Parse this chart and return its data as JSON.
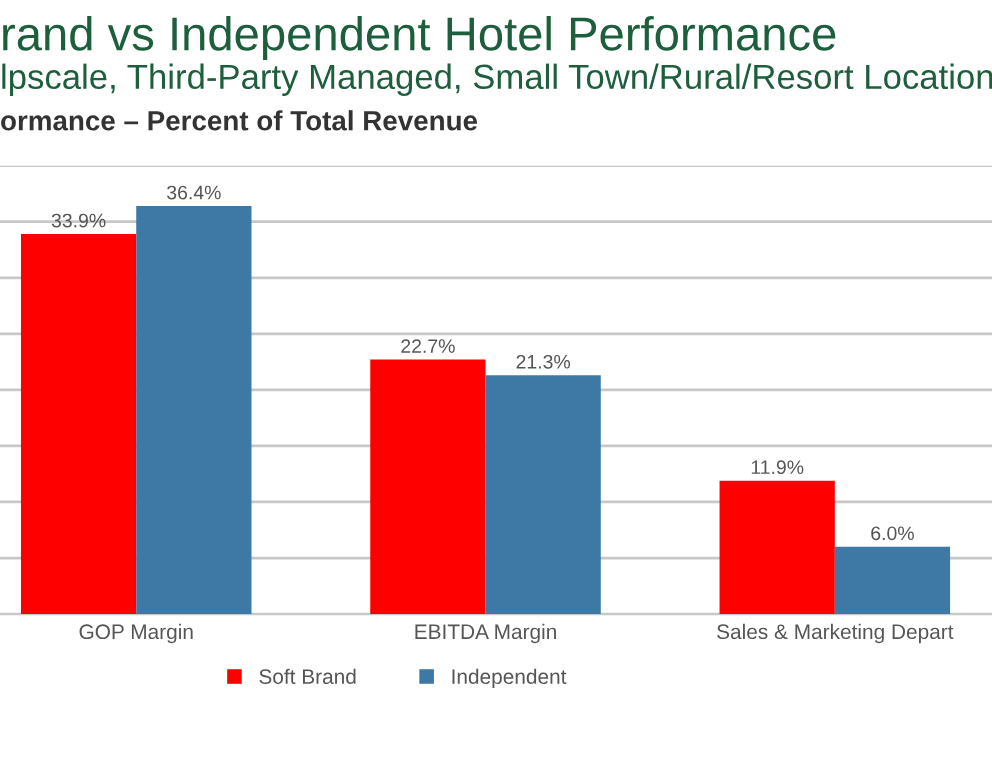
{
  "chart_data": {
    "type": "bar",
    "title": "rand vs Independent Hotel Performance",
    "subtitle": "lpscale, Third-Party Managed, Small Town/Rural/Resort Location",
    "ylabel": "ormance – Percent of Total Revenue",
    "categories": [
      "GOP Margin",
      "EBITDA Margin",
      "Sales & Marketing Depart"
    ],
    "series": [
      {
        "name": "Soft Brand",
        "color": "#ff0000",
        "values": [
          33.9,
          22.7,
          11.9
        ],
        "value_labels": [
          "33.9%",
          "22.7%",
          "11.9%"
        ]
      },
      {
        "name": "Independent",
        "color": "#3e79a5",
        "values": [
          36.4,
          21.3,
          6.0
        ],
        "value_labels": [
          "36.4%",
          "21.3%",
          "6.0%"
        ]
      }
    ],
    "ylim": [
      0,
      40
    ],
    "yticks": [
      {
        "value": 0,
        "label": null
      },
      {
        "value": 5,
        "label": null
      },
      {
        "value": 10,
        "label": null
      },
      {
        "value": 15,
        "label": null
      },
      {
        "value": 20,
        "label": null
      },
      {
        "value": 25,
        "label": null
      },
      {
        "value": 30,
        "label": null
      },
      {
        "value": 35,
        "label": null
      },
      {
        "value": 40,
        "label": null
      }
    ],
    "grid": "y",
    "legend": "bottom"
  }
}
